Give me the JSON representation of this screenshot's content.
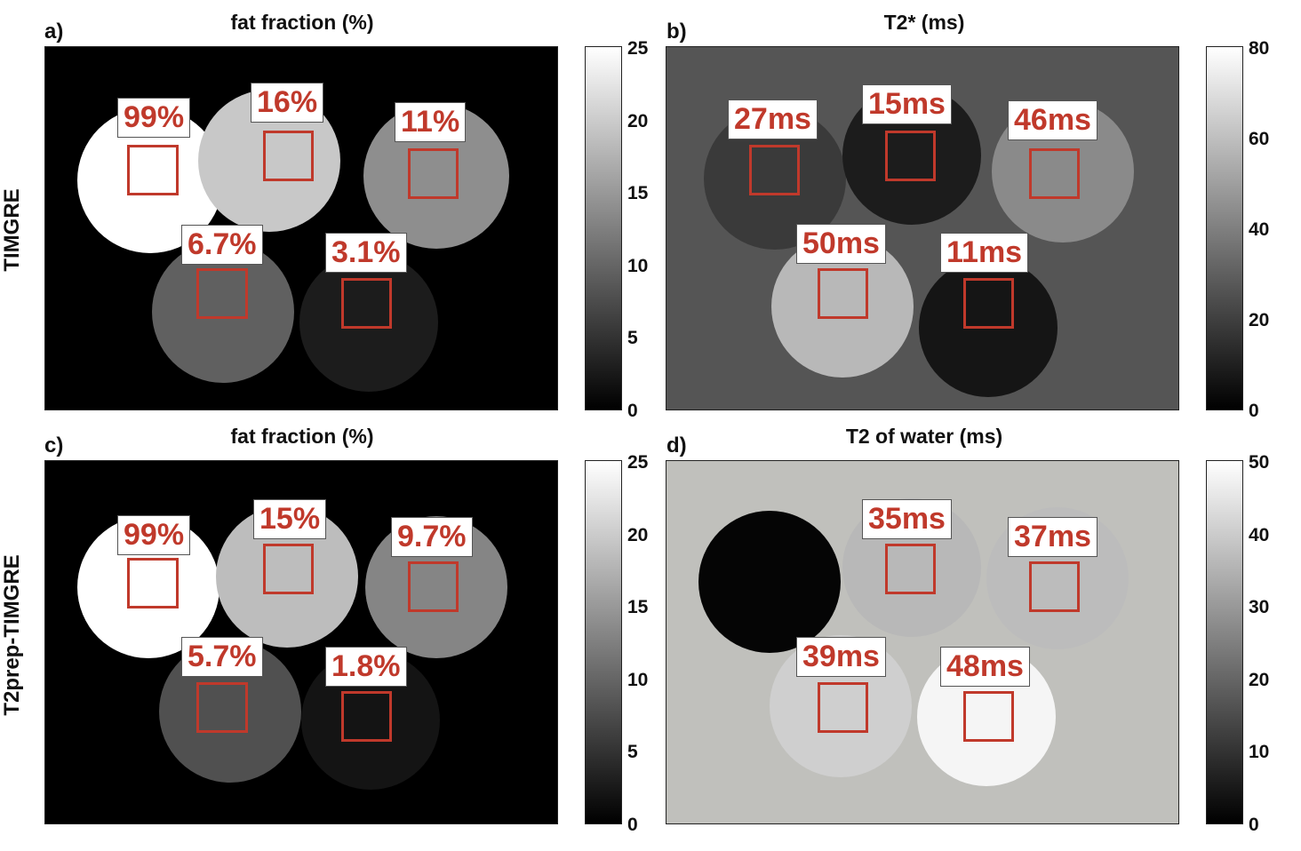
{
  "row_labels": {
    "top": "TIMGRE",
    "bottom": "T2prep-TIMGRE"
  },
  "panels": {
    "a": {
      "letter": "a)",
      "title": "fat fraction (%)",
      "colorbar_ticks": [
        "25",
        "20",
        "15",
        "10",
        "5",
        "0"
      ],
      "values": [
        "99%",
        "16%",
        "11%",
        "6.7%",
        "3.1%"
      ]
    },
    "b": {
      "letter": "b)",
      "title": "T2* (ms)",
      "colorbar_ticks": [
        "80",
        "60",
        "40",
        "20",
        "0"
      ],
      "values": [
        "27ms",
        "15ms",
        "46ms",
        "50ms",
        "11ms"
      ]
    },
    "c": {
      "letter": "c)",
      "title": "fat fraction (%)",
      "colorbar_ticks": [
        "25",
        "20",
        "15",
        "10",
        "5",
        "0"
      ],
      "values": [
        "99%",
        "15%",
        "9.7%",
        "5.7%",
        "1.8%"
      ]
    },
    "d": {
      "letter": "d)",
      "title": "T2 of water (ms)",
      "colorbar_ticks": [
        "50",
        "40",
        "30",
        "20",
        "10",
        "0"
      ],
      "values": [
        "35ms",
        "37ms",
        "39ms",
        "48ms"
      ]
    }
  },
  "colors": {
    "roi": "#c0392b",
    "panel_a_bg": "#000000",
    "panel_b_bg": "#555555",
    "panel_d_bg": "#c0c0bc"
  }
}
